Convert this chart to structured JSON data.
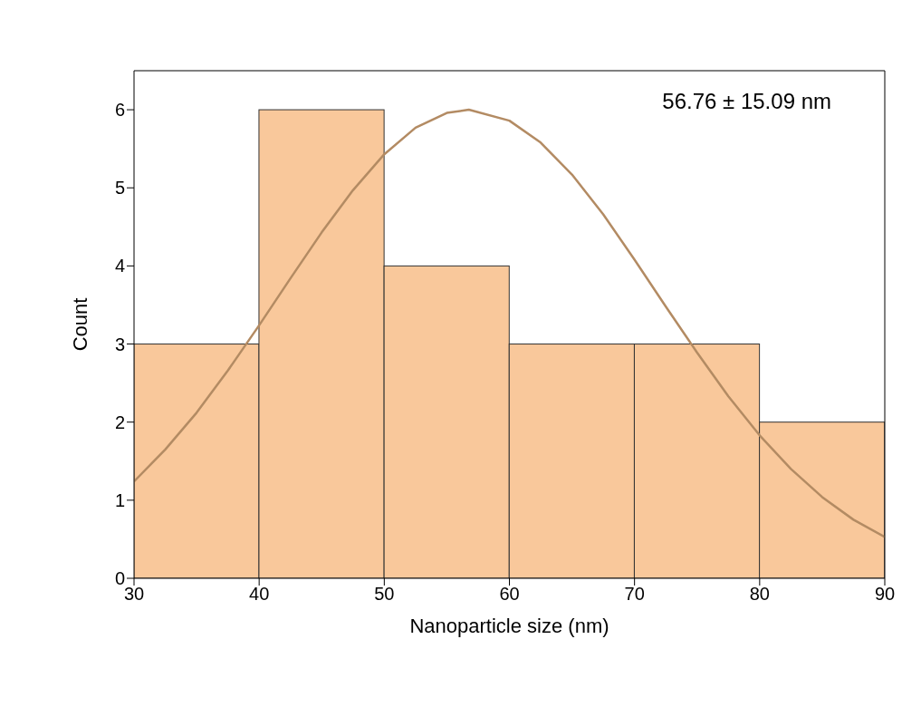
{
  "chart_data": {
    "type": "histogram",
    "xlabel": "Nanoparticle size (nm)",
    "ylabel": "Count",
    "bins": [
      30,
      40,
      50,
      60,
      70,
      80,
      90
    ],
    "values": [
      3,
      6,
      4,
      3,
      3,
      2
    ],
    "color": "#f9c89b",
    "series": [
      {
        "type": "line",
        "color": "#b38b63",
        "x": [
          30,
          32.5,
          35,
          37.5,
          40,
          42.5,
          45,
          47.5,
          50,
          52.5,
          55,
          56.76,
          60,
          62.5,
          65,
          67.5,
          70,
          72.5,
          75,
          77.5,
          80,
          82.5,
          85,
          87.5,
          90
        ],
        "values": [
          1.24,
          1.65,
          2.12,
          2.66,
          3.24,
          3.84,
          4.43,
          4.97,
          5.43,
          5.77,
          5.96,
          6,
          5.86,
          5.58,
          5.17,
          4.66,
          4.08,
          3.48,
          2.89,
          2.33,
          1.83,
          1.4,
          1.04,
          0.75,
          0.53
        ]
      }
    ],
    "xlim": [
      30,
      90
    ],
    "xticks": [
      30,
      40,
      50,
      60,
      70,
      80,
      90
    ],
    "ylim": [
      0,
      6.5
    ],
    "yticks": [
      0,
      1,
      2,
      3,
      4,
      5,
      6
    ],
    "grid": false,
    "legend": false,
    "annotations": [
      "56.76 ± 15.09 nm"
    ]
  }
}
